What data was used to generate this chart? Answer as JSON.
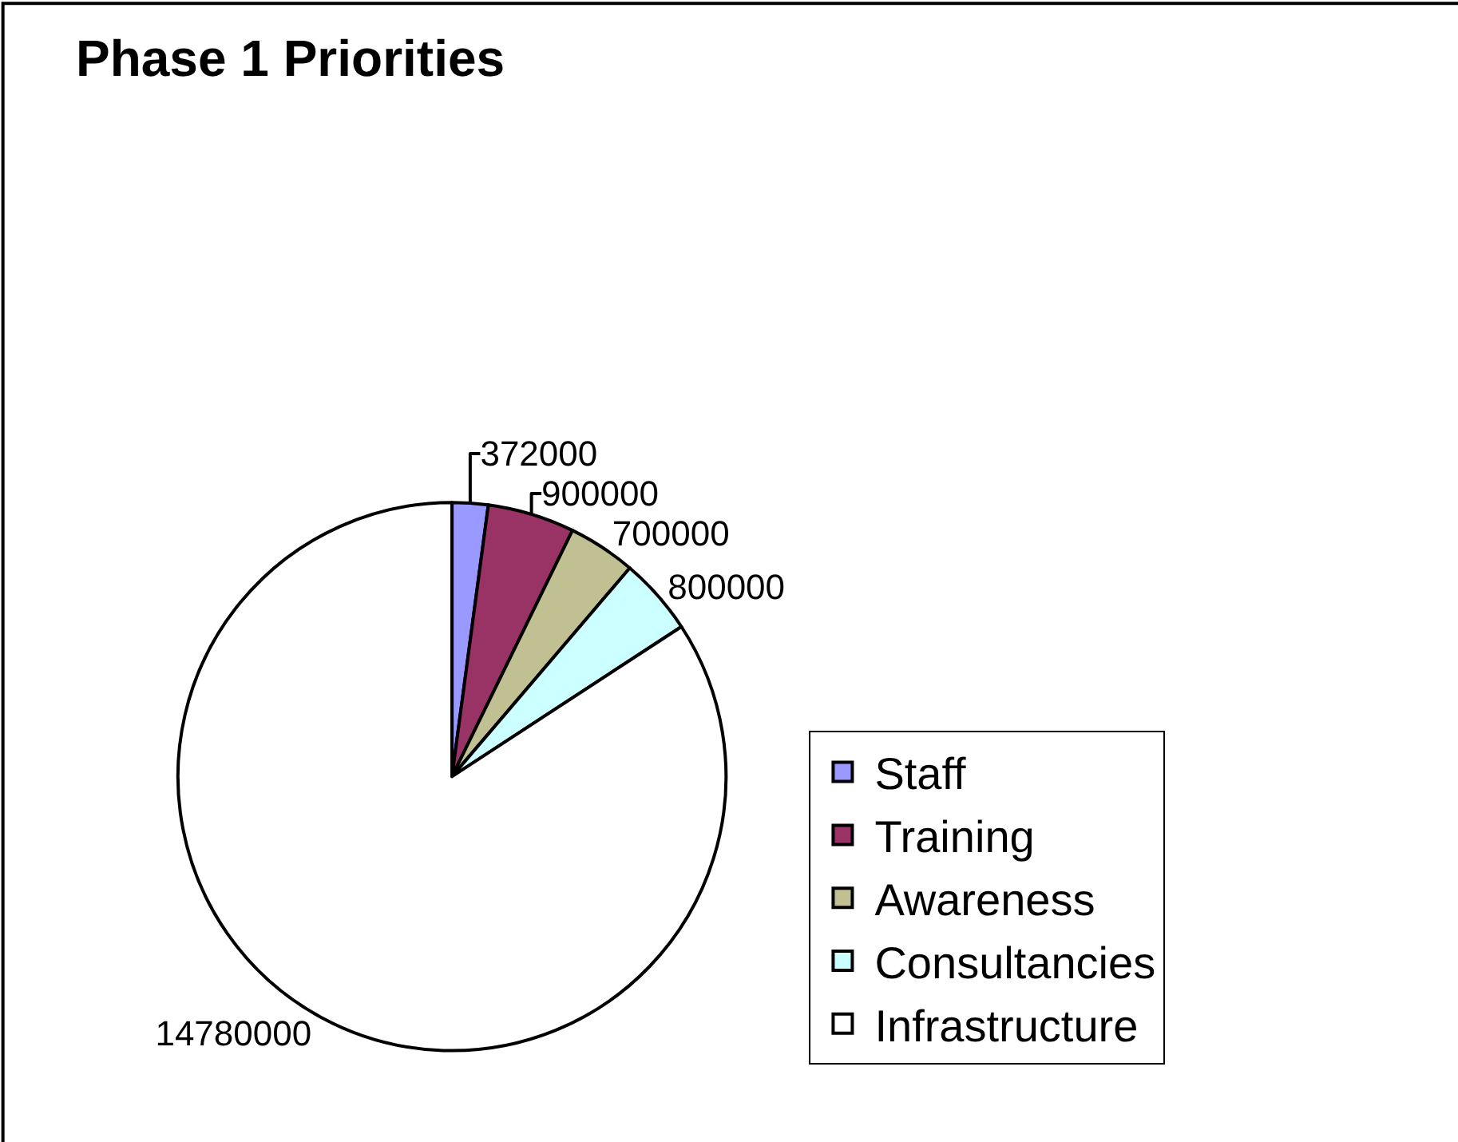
{
  "chart_data": {
    "type": "pie",
    "title": "Phase 1 Priorities",
    "categories": [
      "Staff",
      "Training",
      "Awareness",
      "Consultancies",
      "Infrastructure"
    ],
    "values": [
      372000,
      900000,
      700000,
      800000,
      14780000
    ],
    "colors": [
      "#9999ff",
      "#993366",
      "#c0c092",
      "#ccffff",
      "#ffffff"
    ],
    "data_labels": true,
    "legend": "bottom right"
  }
}
